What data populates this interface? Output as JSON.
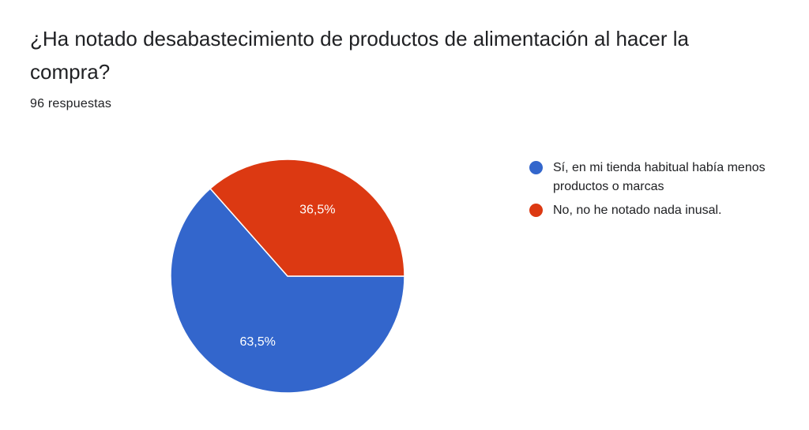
{
  "question": {
    "title": "¿Ha notado desabastecimiento de productos de alimentación al hacer la compra?",
    "responses": "96 respuestas"
  },
  "chart_data": {
    "type": "pie",
    "title": "¿Ha notado desabastecimiento de productos de alimentación al hacer la compra?",
    "slices": [
      {
        "label": "Sí, en mi tienda habitual había menos productos o marcas",
        "value": 63.5,
        "display": "63,5%",
        "color": "#3366cc"
      },
      {
        "label": "No, no he notado nada inusal.",
        "value": 36.5,
        "display": "36,5%",
        "color": "#dc3912"
      }
    ],
    "legend_position": "right"
  }
}
